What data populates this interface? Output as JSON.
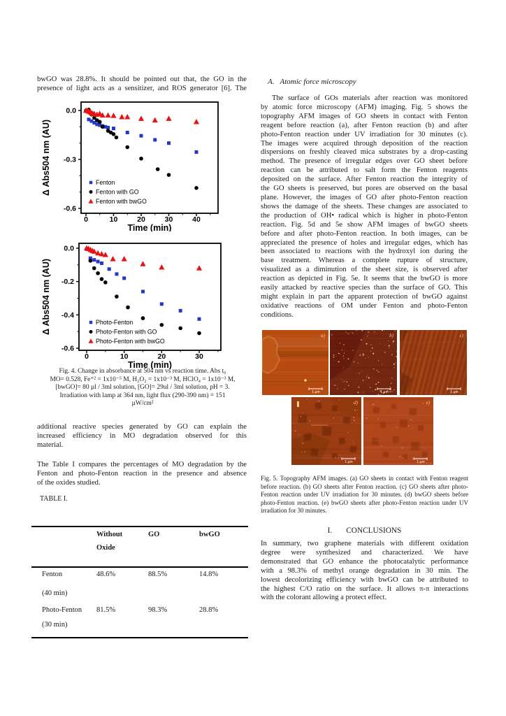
{
  "left_column": {
    "intro_lines": [
      "bwGO was 28.8%. It should be pointed out that, the GO in the",
      "presence of light acts as a sensitizer, and ROS generator [6]. The"
    ],
    "fig4_caption_lines": [
      "Fig. 4. Change in absorbance at 504 nm vs reaction time. Abs t₀",
      "MO= 0.528, Fe⁺² = 1x10⁻⁵ M, H₂O₂ = 1x10⁻³ M, HClO₄ = 1x10⁻³ M,",
      "[bwGO]= 80 µl / 3ml solution, [GO]= 29ul / 3ml solution, pH = 3.",
      "Irradiation with lamp at 364 nm, light flux (290-390 nm) = 151",
      "µW/cm²"
    ],
    "para1_lines": [
      "additional reactive species generated by GO can explain the",
      "increased efficiency in MO degradation observed for this",
      "material."
    ],
    "para2_lines": [
      "The Table I compares the percentages of MO degradation by the",
      "Fenton and photo-Fenton reaction in the presence and absence",
      "of the oxides studied."
    ],
    "table_heading": "TABLE I."
  },
  "table": {
    "columns": [
      "",
      "Without Oxide",
      "GO",
      "bwGO"
    ],
    "rows": [
      {
        "label": "Fenton",
        "duration": "(40 min)",
        "values": [
          "48.6%",
          "88.5%",
          "14.8%"
        ]
      },
      {
        "label": "Photo-Fenton",
        "duration": "(30 min)",
        "values": [
          "81.5%",
          "98.3%",
          "28.8%"
        ]
      }
    ]
  },
  "right_column": {
    "section_a_label": "A.",
    "section_a_title": "Atomic force microscopy",
    "afm_paragraph_lines": [
      "The surface of GOs materials after reaction was monitored",
      "by atomic force microscopy (AFM) imaging. Fig. 5 shows the",
      "topography AFM images of GO sheets in contact with Fenton",
      "reagent before reaction (a), after Fenton reaction (b) and after",
      "photo-Fenton reaction under UV irradiation for 30 minutes (c).",
      "The images were acquired through deposition of the reaction",
      "dispersions on freshly cleaved mica substrates by a drop-casting",
      "method. The presence of irregular edges over GO sheet before",
      "reaction can be attributed to salt form the Fenton reagents",
      "deposited on the surface. After Fenton reaction the integrity of",
      "the GO sheets is preserved, but pores are observed on the basal",
      "plane. However, the images of GO after photo-Fenton reaction",
      "shows the damage of the sheets. These changes are associated to",
      "the production of OH• radical which is higher in photo-Fenton",
      "reaction. Fig. 5d and 5e show AFM images of bwGO sheets",
      "before and after photo-Fenton reaction. In both images, can be",
      "appreciated the presence of holes and irregular edges, which has",
      "been associated to reactions with the hydroxyl ion during the",
      "base treatment. Whereas a complete rupture of structure,",
      "visualized as a diminution of the sheet size, is observed after",
      "reaction as depicted in Fig. 5e. It seems that the bwGO is more",
      "easily attacked by reactive species than the surface of GO. This",
      "might explain in part the apparent protection of bwGO against",
      "oxidative reactions of OM under Fenton and photo-Fenton",
      "conditions."
    ],
    "fig5_caption_lines": [
      "Fig. 5.  Topography AFM images. (a) GO sheets in contact with Fenton reagent",
      "before reaction. (b) GO sheets after Fenton reaction. (c) GO sheets after photo-",
      "Fenton reaction under UV irradiation for 30 minutes. (d) bwGO sheets before",
      "photo-Fenton reaction. (e) bwGO sheets after photo-Fenton reaction under UV",
      "irradiation for 30 minutes."
    ],
    "afm_labels": [
      "a)",
      "b)",
      "c)",
      "d)",
      "e)"
    ],
    "scale_label": "1 µm",
    "conclusions_label": "I.",
    "conclusions_title": "CONCLUSIONS",
    "conclusions_lines": [
      "In summary, two graphene materials with different oxidation",
      "degree were synthesized and characterized. We have",
      "demonstrated that GO enhance the photocatalytic performance",
      "with a 98.3% of methyl orange degradation in 30 min. The",
      "lowest decolorizing efficiency with bwGO can be attributed to",
      "the highest C/O ratio on the surface. It allows π-π interactions",
      "with the colorant allowing a protect effect."
    ]
  },
  "chart_data": [
    {
      "type": "scatter",
      "xlabel": "Time (min)",
      "ylabel": "Δ Abs504 nm (AU)",
      "xlim": [
        -2,
        47
      ],
      "ylim": [
        -0.63,
        0.05
      ],
      "xticks": [
        0,
        10,
        20,
        30,
        40
      ],
      "yticks": [
        0.0,
        -0.3,
        -0.6
      ],
      "legend_position": "lower-left",
      "series": [
        {
          "name": "Fenton",
          "marker": "square",
          "color": "#2238c8",
          "x": [
            1,
            2,
            3,
            4,
            5,
            6,
            7,
            8,
            10,
            15,
            20,
            25,
            30,
            40
          ],
          "y": [
            -0.055,
            -0.065,
            -0.075,
            -0.085,
            -0.09,
            -0.095,
            -0.1,
            -0.105,
            -0.11,
            -0.135,
            -0.155,
            -0.18,
            -0.2,
            -0.255
          ]
        },
        {
          "name": "Fenton with GO",
          "marker": "circle",
          "color": "#000000",
          "x": [
            0,
            1,
            2,
            3,
            4,
            5,
            6,
            8,
            9,
            10,
            11,
            15,
            20,
            26,
            30,
            40
          ],
          "y": [
            0.0,
            0.005,
            -0.025,
            -0.045,
            -0.06,
            -0.07,
            -0.1,
            -0.125,
            -0.135,
            -0.145,
            -0.165,
            -0.225,
            -0.295,
            -0.36,
            -0.395,
            -0.475
          ]
        },
        {
          "name": "Fenton with bwGO",
          "marker": "triangle",
          "color": "#e81212",
          "x": [
            0,
            0.5,
            1,
            1.5,
            2,
            2.5,
            3,
            4,
            5,
            6,
            8,
            10,
            13,
            15,
            20,
            25,
            30,
            40
          ],
          "y": [
            0.0,
            -0.002,
            -0.005,
            -0.01,
            -0.015,
            -0.02,
            -0.02,
            -0.025,
            -0.02,
            -0.03,
            -0.03,
            -0.032,
            -0.04,
            -0.04,
            -0.05,
            -0.06,
            -0.05,
            -0.07
          ]
        }
      ]
    },
    {
      "type": "scatter",
      "xlabel": "Time (min)",
      "ylabel": "Δ Abs504 nm (AU)",
      "xlim": [
        -2,
        36
      ],
      "ylim": [
        -0.62,
        0.05
      ],
      "xticks": [
        0,
        10,
        20,
        30
      ],
      "yticks": [
        0.0,
        -0.2,
        -0.4,
        -0.6
      ],
      "legend_position": "lower-left",
      "series": [
        {
          "name": "Photo-Fenton",
          "marker": "square",
          "color": "#2238c8",
          "x": [
            1,
            2,
            3,
            4,
            6,
            8,
            10,
            15,
            20,
            25,
            30
          ],
          "y": [
            -0.06,
            -0.07,
            -0.08,
            -0.09,
            -0.125,
            -0.155,
            -0.18,
            -0.26,
            -0.335,
            -0.375,
            -0.425
          ]
        },
        {
          "name": "Photo-Fenton with GO",
          "marker": "circle",
          "color": "#000000",
          "x": [
            0,
            1,
            2,
            3,
            4,
            5,
            8,
            11,
            15,
            20,
            25,
            30
          ],
          "y": [
            -0.005,
            -0.075,
            -0.12,
            -0.15,
            -0.185,
            -0.205,
            -0.29,
            -0.355,
            -0.42,
            -0.46,
            -0.48,
            -0.51
          ]
        },
        {
          "name": "Photo-Fenton with bwGO",
          "marker": "triangle",
          "color": "#e81212",
          "x": [
            0,
            0.5,
            1,
            1.5,
            2,
            3,
            4,
            5,
            7,
            10,
            15,
            20,
            30
          ],
          "y": [
            0.0,
            -0.003,
            -0.01,
            -0.015,
            -0.02,
            -0.03,
            -0.035,
            -0.04,
            -0.065,
            -0.065,
            -0.095,
            -0.115,
            -0.12
          ]
        }
      ]
    }
  ]
}
